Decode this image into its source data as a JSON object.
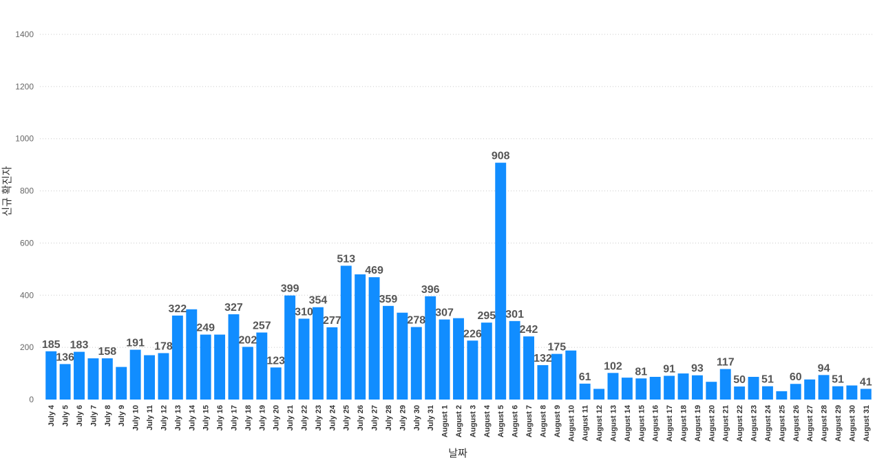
{
  "chart_data": {
    "type": "bar",
    "xlabel": "날짜",
    "ylabel": "신규 확진자",
    "ylim": [
      0,
      1400
    ],
    "yticks": [
      0,
      200,
      400,
      600,
      800,
      1000,
      1200,
      1400
    ],
    "grid": true,
    "bar_color": "#118DFF",
    "categories": [
      "July 4",
      "July 5",
      "July 6",
      "July 7",
      "July 8",
      "July 9",
      "July 10",
      "July 11",
      "July 12",
      "July 13",
      "July 14",
      "July 15",
      "July 16",
      "July 17",
      "July 18",
      "July 19",
      "July 20",
      "July 21",
      "July 22",
      "July 23",
      "July 24",
      "July 25",
      "July 26",
      "July 27",
      "July 28",
      "July 29",
      "July 30",
      "July 31",
      "August 1",
      "August 2",
      "August 3",
      "August 4",
      "August 5",
      "August 6",
      "August 7",
      "August 8",
      "August 9",
      "August 10",
      "August 11",
      "August 12",
      "August 13",
      "August 14",
      "August 15",
      "August 16",
      "August 17",
      "August 18",
      "August 19",
      "August 20",
      "August 21",
      "August 22",
      "August 23",
      "August 24",
      "August 25",
      "August 26",
      "August 27",
      "August 28",
      "August 29",
      "August 30",
      "August 31"
    ],
    "values": [
      185,
      136,
      183,
      158,
      158,
      125,
      191,
      170,
      178,
      322,
      346,
      249,
      249,
      327,
      202,
      257,
      123,
      399,
      310,
      354,
      277,
      513,
      480,
      469,
      359,
      333,
      278,
      396,
      307,
      312,
      226,
      295,
      908,
      301,
      242,
      132,
      175,
      188,
      61,
      41,
      102,
      84,
      81,
      87,
      91,
      100,
      93,
      68,
      117,
      50,
      87,
      51,
      32,
      60,
      77,
      94,
      51,
      54,
      41
    ],
    "data_labels": [
      "185",
      "136",
      "183",
      "",
      "158",
      "",
      "191",
      "",
      "178",
      "322",
      "",
      "249",
      "",
      "327",
      "202",
      "257",
      "123",
      "399",
      "310",
      "354",
      "277",
      "513",
      "",
      "469",
      "359",
      "",
      "278",
      "396",
      "307",
      "",
      "226",
      "295",
      "908",
      "301",
      "242",
      "132",
      "175",
      "",
      "61",
      "",
      "102",
      "",
      "81",
      "",
      "91",
      "",
      "93",
      "",
      "117",
      "50",
      "",
      "51",
      "",
      "60",
      "",
      "94",
      "51",
      "",
      "41"
    ]
  }
}
